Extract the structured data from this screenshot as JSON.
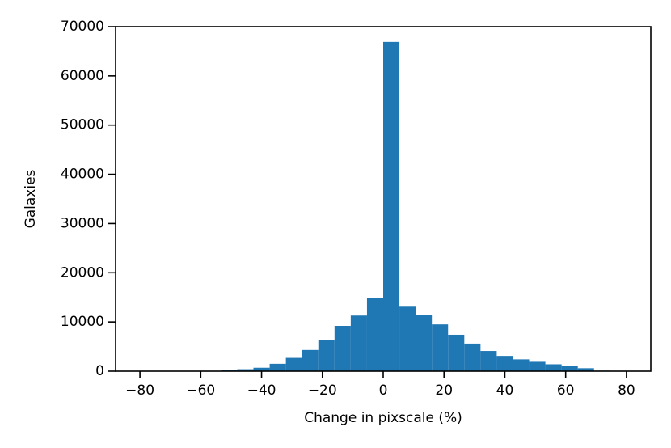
{
  "chart_data": {
    "type": "histogram",
    "xlabel": "Change in pixscale (%)",
    "ylabel": "Galaxies",
    "bins": [
      -80,
      -74.67,
      -69.33,
      -64,
      -58.67,
      -53.33,
      -48,
      -42.67,
      -37.33,
      -32,
      -26.67,
      -21.33,
      -16,
      -10.67,
      -5.33,
      0,
      5.33,
      10.67,
      16,
      21.33,
      26.67,
      32,
      37.33,
      42.67,
      48,
      53.33,
      58.67,
      64,
      69.33,
      74.67,
      80
    ],
    "counts": [
      0,
      0,
      0,
      20,
      60,
      200,
      400,
      700,
      1500,
      2700,
      4300,
      6400,
      9200,
      11300,
      14800,
      66900,
      13100,
      11500,
      9500,
      7400,
      5600,
      4100,
      3100,
      2400,
      1900,
      1400,
      1000,
      600,
      100,
      50
    ],
    "color": "#1f77b4",
    "xlim": [
      -88,
      88
    ],
    "ylim": [
      0,
      70000
    ],
    "xticks": [
      {
        "value": -80,
        "label": "−80"
      },
      {
        "value": -60,
        "label": "−60"
      },
      {
        "value": -40,
        "label": "−40"
      },
      {
        "value": -20,
        "label": "−20"
      },
      0,
      20,
      40,
      60,
      80
    ],
    "yticks": [
      0,
      10000,
      20000,
      30000,
      40000,
      50000,
      60000,
      70000
    ]
  }
}
